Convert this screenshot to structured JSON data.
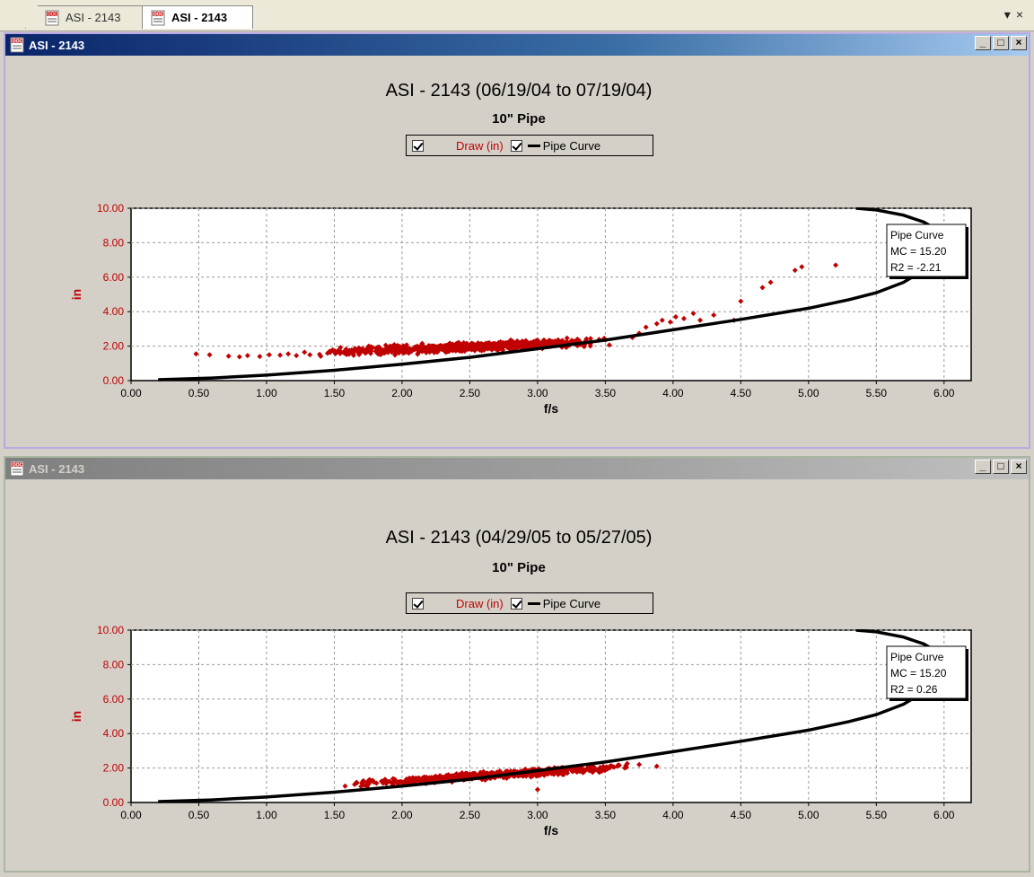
{
  "tabs": [
    {
      "label": "ASI - 2143",
      "active": false,
      "icon": "doc-icon"
    },
    {
      "label": "ASI - 2143",
      "active": true,
      "icon": "doc-icon"
    }
  ],
  "tab_strip_buttons": {
    "dropdown": "▾",
    "close": "×"
  },
  "windows": [
    {
      "title": "ASI - 2143",
      "active": true,
      "chart_title": "ASI - 2143 (06/19/04 to 07/19/04)",
      "chart_subtitle": "10\" Pipe",
      "legend": {
        "draw_label": "Draw (in)",
        "pipe_label": "Pipe Curve"
      },
      "info_box": {
        "line1": "Pipe Curve",
        "line2": "MC = 15.20",
        "line3": "R2 = -2.21"
      }
    },
    {
      "title": "ASI - 2143",
      "active": false,
      "chart_title": "ASI - 2143 (04/29/05 to 05/27/05)",
      "chart_subtitle": "10\" Pipe",
      "legend": {
        "draw_label": "Draw (in)",
        "pipe_label": "Pipe Curve"
      },
      "info_box": {
        "line1": "Pipe Curve",
        "line2": "MC = 15.20",
        "line3": "R2 = 0.26"
      }
    }
  ],
  "window_buttons": {
    "minimize": "_",
    "maximize": "□",
    "close": "×"
  },
  "colors": {
    "scatter": "#c00000",
    "curve": "#000000",
    "axis_label": "#c00000",
    "grid": "#999999"
  },
  "chart_data": [
    {
      "type": "scatter",
      "title": "ASI - 2143 (06/19/04 to 07/19/04)",
      "subtitle": "10\" Pipe",
      "xlabel": "f/s",
      "ylabel": "in",
      "xlim": [
        0,
        6.2
      ],
      "ylim": [
        0,
        10
      ],
      "xticks": [
        "0.00",
        "0.50",
        "1.00",
        "1.50",
        "2.00",
        "2.50",
        "3.00",
        "3.50",
        "4.00",
        "4.50",
        "5.00",
        "5.50",
        "6.00"
      ],
      "yticks": [
        "0.00",
        "2.00",
        "4.00",
        "6.00",
        "8.00",
        "10.00"
      ],
      "grid": true,
      "series": [
        {
          "name": "Draw (in)",
          "kind": "scatter",
          "cluster": {
            "x_range": [
              1.35,
              3.6
            ],
            "y_center_start": 1.6,
            "y_center_end": 2.3,
            "y_spread": 0.35,
            "count": 900
          },
          "points": [
            [
              0.48,
              1.55
            ],
            [
              0.58,
              1.5
            ],
            [
              0.72,
              1.42
            ],
            [
              0.8,
              1.38
            ],
            [
              0.86,
              1.45
            ],
            [
              0.95,
              1.4
            ],
            [
              1.02,
              1.5
            ],
            [
              1.1,
              1.48
            ],
            [
              1.16,
              1.55
            ],
            [
              1.22,
              1.45
            ],
            [
              1.28,
              1.65
            ],
            [
              1.32,
              1.5
            ],
            [
              3.7,
              2.5
            ],
            [
              3.75,
              2.75
            ],
            [
              3.8,
              3.1
            ],
            [
              3.88,
              3.3
            ],
            [
              3.92,
              3.5
            ],
            [
              3.98,
              3.4
            ],
            [
              4.02,
              3.7
            ],
            [
              4.08,
              3.6
            ],
            [
              4.15,
              3.9
            ],
            [
              4.2,
              3.5
            ],
            [
              4.3,
              3.8
            ],
            [
              4.45,
              3.5
            ],
            [
              4.5,
              4.6
            ],
            [
              4.66,
              5.4
            ],
            [
              4.72,
              5.7
            ],
            [
              4.9,
              6.4
            ],
            [
              4.95,
              6.6
            ],
            [
              5.2,
              6.7
            ]
          ]
        },
        {
          "name": "Pipe Curve",
          "kind": "line",
          "points": [
            [
              0.2,
              0.05
            ],
            [
              0.6,
              0.15
            ],
            [
              1.0,
              0.32
            ],
            [
              1.5,
              0.6
            ],
            [
              2.0,
              0.95
            ],
            [
              2.5,
              1.35
            ],
            [
              3.0,
              1.85
            ],
            [
              3.5,
              2.35
            ],
            [
              4.0,
              2.95
            ],
            [
              4.5,
              3.55
            ],
            [
              5.0,
              4.2
            ],
            [
              5.3,
              4.7
            ],
            [
              5.5,
              5.1
            ],
            [
              5.7,
              5.7
            ],
            [
              5.85,
              6.4
            ],
            [
              5.95,
              7.2
            ],
            [
              6.0,
              8.0
            ],
            [
              5.98,
              8.6
            ],
            [
              5.85,
              9.2
            ],
            [
              5.7,
              9.6
            ],
            [
              5.5,
              9.9
            ],
            [
              5.35,
              10.0
            ]
          ]
        }
      ]
    },
    {
      "type": "scatter",
      "title": "ASI - 2143 (04/29/05 to 05/27/05)",
      "subtitle": "10\" Pipe",
      "xlabel": "f/s",
      "ylabel": "in",
      "xlim": [
        0,
        6.2
      ],
      "ylim": [
        0,
        10
      ],
      "xticks": [
        "0.00",
        "0.50",
        "1.00",
        "1.50",
        "2.00",
        "2.50",
        "3.00",
        "3.50",
        "4.00",
        "4.50",
        "5.00",
        "5.50",
        "6.00"
      ],
      "yticks": [
        "0.00",
        "2.00",
        "4.00",
        "6.00",
        "8.00",
        "10.00"
      ],
      "grid": true,
      "series": [
        {
          "name": "Draw (in)",
          "kind": "scatter",
          "cluster": {
            "x_range": [
              1.6,
              3.7
            ],
            "y_center_start": 1.05,
            "y_center_end": 2.1,
            "y_spread": 0.28,
            "count": 800
          },
          "points": [
            [
              1.58,
              0.95
            ],
            [
              1.65,
              1.05
            ],
            [
              1.72,
              1.0
            ],
            [
              3.0,
              0.75
            ],
            [
              3.75,
              2.2
            ],
            [
              3.88,
              2.1
            ]
          ]
        },
        {
          "name": "Pipe Curve",
          "kind": "line",
          "points": [
            [
              0.2,
              0.05
            ],
            [
              0.6,
              0.15
            ],
            [
              1.0,
              0.32
            ],
            [
              1.5,
              0.6
            ],
            [
              2.0,
              0.95
            ],
            [
              2.5,
              1.35
            ],
            [
              3.0,
              1.85
            ],
            [
              3.5,
              2.35
            ],
            [
              4.0,
              2.95
            ],
            [
              4.5,
              3.55
            ],
            [
              5.0,
              4.2
            ],
            [
              5.3,
              4.7
            ],
            [
              5.5,
              5.1
            ],
            [
              5.7,
              5.7
            ],
            [
              5.85,
              6.4
            ],
            [
              5.95,
              7.2
            ],
            [
              6.0,
              8.0
            ],
            [
              5.98,
              8.6
            ],
            [
              5.85,
              9.2
            ],
            [
              5.7,
              9.6
            ],
            [
              5.5,
              9.9
            ],
            [
              5.35,
              10.0
            ]
          ]
        }
      ]
    }
  ]
}
